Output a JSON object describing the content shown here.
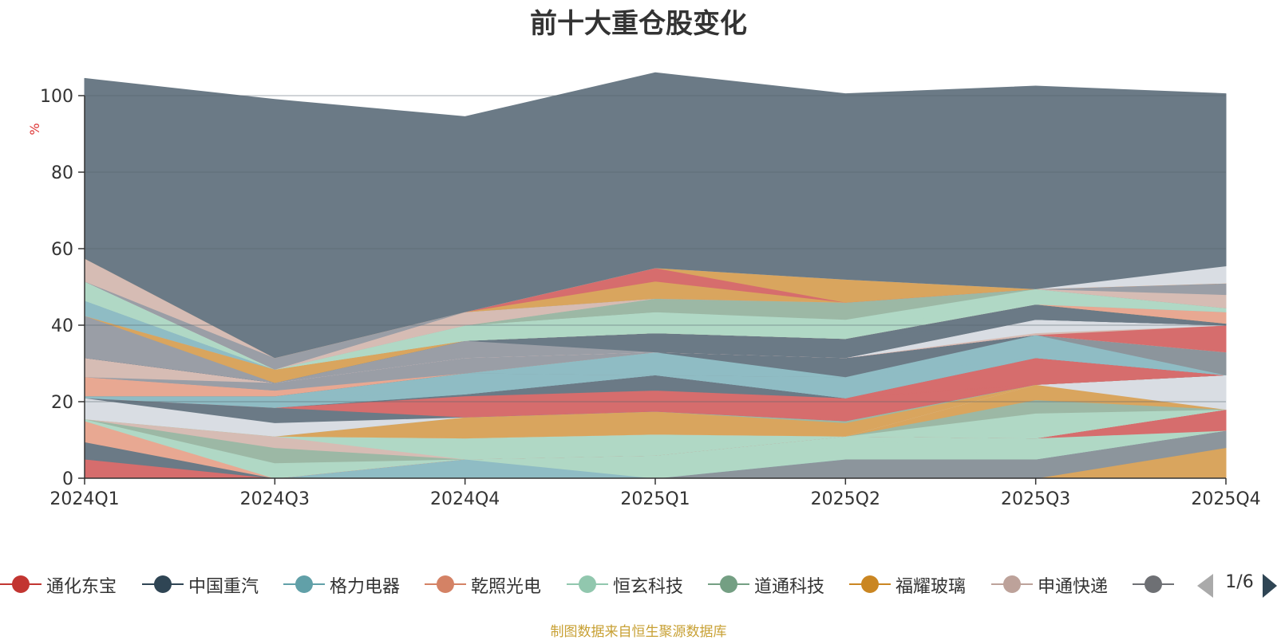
{
  "chart_data": {
    "type": "area",
    "stacked": true,
    "title": "前十大重仓股变化",
    "ylabel": "%",
    "ylim": [
      0,
      100
    ],
    "y_ticks": [
      0,
      20,
      40,
      60,
      80,
      100
    ],
    "categories": [
      "2024Q1",
      "2024Q3",
      "2024Q4",
      "2025Q1",
      "2025Q2",
      "2025Q3",
      "2025Q4"
    ],
    "grid": true,
    "legend_position": "bottom",
    "series": [
      {
        "values": [
          0,
          0,
          0,
          0,
          0,
          0,
          8.0
        ],
        "color": "#d9a55e"
      },
      {
        "values": [
          0,
          0,
          0,
          0,
          5.0,
          5.0,
          4.5
        ],
        "color": "#8c959c"
      },
      {
        "values": [
          0,
          0,
          5.0,
          0,
          0,
          0,
          0
        ],
        "color": "#8fbcc4"
      },
      {
        "values": [
          0,
          0,
          0,
          6.0,
          6.0,
          0,
          0
        ],
        "color": "#b0d8c5"
      },
      {
        "values": [
          0,
          0,
          0,
          0,
          0,
          5.5,
          0
        ],
        "color": "#b0d8c5"
      },
      {
        "values": [
          0,
          0,
          0,
          0,
          0,
          0,
          5.5
        ],
        "color": "#d66d6d"
      },
      {
        "values": [
          5.0,
          0,
          0,
          0,
          0,
          0,
          0
        ],
        "color": "#d66d6d"
      },
      {
        "values": [
          4.5,
          0,
          0,
          0,
          0,
          0,
          0
        ],
        "color": "#6b7a86"
      },
      {
        "values": [
          5.5,
          0,
          0,
          0,
          0,
          0,
          0
        ],
        "color": "#e8a892"
      },
      {
        "values": [
          0.5,
          4.0,
          0,
          0,
          0,
          0,
          0
        ],
        "color": "#b0d8c5"
      },
      {
        "values": [
          0,
          4.0,
          0,
          0,
          0,
          0,
          0
        ],
        "color": "#9cb8a5"
      },
      {
        "values": [
          0,
          3.0,
          0,
          0,
          0,
          0,
          0
        ],
        "color": "#d6bcb4"
      },
      {
        "values": [
          0,
          0,
          5.5,
          5.5,
          0,
          6.5,
          0
        ],
        "color": "#b0d8c5"
      },
      {
        "values": [
          0,
          0,
          0,
          0,
          0,
          3.5,
          0
        ],
        "color": "#9cb8a5"
      },
      {
        "values": [
          0,
          0,
          0,
          0,
          0,
          4.0,
          0
        ],
        "color": "#d9a55e"
      },
      {
        "values": [
          0,
          0,
          0,
          0,
          0,
          0,
          9.0
        ],
        "color": "#d9dde3"
      },
      {
        "values": [
          0,
          0,
          5.5,
          6.0,
          3.5,
          0,
          0
        ],
        "color": "#d9a55e"
      },
      {
        "values": [
          0,
          0,
          0,
          0,
          0.5,
          0,
          0
        ],
        "color": "#9cb8a5"
      },
      {
        "values": [
          5.5,
          3.5,
          0,
          0,
          0,
          0,
          0
        ],
        "color": "#d9dde3"
      },
      {
        "values": [
          0,
          4.0,
          0,
          0,
          0,
          0,
          0
        ],
        "color": "#6b7a86"
      },
      {
        "values": [
          0,
          0,
          5.5,
          5.5,
          6.0,
          0,
          0
        ],
        "color": "#d66d6d"
      },
      {
        "values": [
          0,
          0,
          0,
          0,
          0,
          7.0,
          0
        ],
        "color": "#d66d6d"
      },
      {
        "values": [
          0,
          0,
          0.5,
          4.0,
          0,
          0,
          0
        ],
        "color": "#6b7a86"
      },
      {
        "values": [
          0.5,
          0,
          0,
          0,
          0,
          0,
          0
        ],
        "color": "#8fbcc4"
      },
      {
        "values": [
          0,
          3.0,
          0,
          0,
          0,
          0,
          0
        ],
        "color": "#8fbcc4"
      },
      {
        "values": [
          0,
          0,
          5.5,
          0,
          5.5,
          0,
          0
        ],
        "color": "#8fbcc4"
      },
      {
        "values": [
          0,
          0,
          0,
          0,
          0,
          6.0,
          0
        ],
        "color": "#8fbcc4"
      },
      {
        "values": [
          0,
          0,
          0,
          0,
          0,
          0,
          6.0
        ],
        "color": "#8c959c"
      },
      {
        "values": [
          0,
          0,
          0,
          6.0,
          0,
          0,
          0
        ],
        "color": "#8fbcc4"
      },
      {
        "values": [
          0,
          0,
          0,
          0,
          5.0,
          0,
          0
        ],
        "color": "#6b7a86"
      },
      {
        "values": [
          5.0,
          1.5,
          0,
          0,
          0,
          0,
          0
        ],
        "color": "#e8a892"
      },
      {
        "values": [
          0,
          0,
          4.0,
          0,
          0,
          0,
          0
        ],
        "color": "#9a9ea6"
      },
      {
        "values": [
          0,
          2.0,
          0,
          0,
          0,
          0,
          0
        ],
        "color": "#9a9ea6"
      },
      {
        "values": [
          5.0,
          0,
          0,
          0,
          0,
          0,
          0
        ],
        "color": "#d6bcb4"
      },
      {
        "values": [
          0,
          0,
          0,
          0,
          0,
          0,
          7.0
        ],
        "color": "#d66d6d"
      },
      {
        "values": [
          0,
          0,
          0,
          0,
          0,
          0.5,
          0
        ],
        "color": "#d6bcb4"
      },
      {
        "values": [
          0,
          0,
          0,
          0,
          0,
          3.5,
          0
        ],
        "color": "#d9dde3"
      },
      {
        "values": [
          0,
          0,
          4.5,
          0,
          0,
          0,
          0
        ],
        "color": "#9a9ea6"
      },
      {
        "values": [
          0,
          0,
          0,
          5.0,
          5.0,
          0,
          0
        ],
        "color": "#6b7a86"
      },
      {
        "values": [
          0,
          0,
          0,
          0,
          0,
          4.0,
          0
        ],
        "color": "#6b7a86"
      },
      {
        "values": [
          0,
          0,
          0,
          0,
          0,
          0,
          0.5
        ],
        "color": "#6b7a86"
      },
      {
        "values": [
          11.0,
          0,
          0,
          0,
          0,
          0,
          0
        ],
        "color": "#9a9ea6"
      },
      {
        "values": [
          0,
          3.5,
          0,
          0,
          0,
          0,
          0
        ],
        "color": "#d9a55e"
      },
      {
        "values": [
          0,
          0,
          0,
          0,
          0,
          0,
          3.0
        ],
        "color": "#e8a892"
      },
      {
        "values": [
          4.0,
          0,
          0,
          0,
          0,
          0,
          0
        ],
        "color": "#8fbcc4"
      },
      {
        "values": [
          0,
          0,
          0,
          0,
          0,
          4.0,
          0
        ],
        "color": "#b0d8c5"
      },
      {
        "values": [
          0,
          0,
          4.0,
          5.5,
          5.0,
          0,
          0
        ],
        "color": "#b0d8c5"
      },
      {
        "values": [
          0,
          0,
          0,
          0,
          0,
          0,
          1.0
        ],
        "color": "#b0d8c5"
      },
      {
        "values": [
          5.0,
          0,
          0,
          0,
          0,
          0,
          0
        ],
        "color": "#b0d8c5"
      },
      {
        "values": [
          0,
          0,
          0,
          0,
          4.5,
          0,
          0
        ],
        "color": "#9cb8a5"
      },
      {
        "values": [
          0,
          0,
          0,
          3.5,
          0,
          0,
          0
        ],
        "color": "#9cb8a5"
      },
      {
        "values": [
          0,
          0,
          0,
          0,
          0,
          0,
          3.5
        ],
        "color": "#d6bcb4"
      },
      {
        "values": [
          0,
          0,
          3.5,
          0,
          0,
          0,
          0
        ],
        "color": "#d6bcb4"
      },
      {
        "values": [
          0,
          0,
          0,
          0,
          0,
          0,
          3.0
        ],
        "color": "#9a9ea6"
      },
      {
        "values": [
          0,
          3.0,
          0,
          0,
          0,
          0,
          0
        ],
        "color": "#9a9ea6"
      },
      {
        "values": [
          6.0,
          0,
          0,
          0,
          0,
          0,
          0
        ],
        "color": "#d6bcb4"
      },
      {
        "values": [
          0,
          0,
          0,
          4.5,
          0,
          0,
          0
        ],
        "color": "#d9a55e"
      },
      {
        "values": [
          0,
          0,
          0,
          3.5,
          0,
          0,
          0
        ],
        "color": "#d66d6d"
      },
      {
        "values": [
          0,
          0,
          0,
          0,
          6.0,
          0,
          0
        ],
        "color": "#d9a55e"
      },
      {
        "values": [
          0,
          0,
          0,
          0,
          0,
          0,
          4.5
        ],
        "color": "#d9dde3"
      },
      {
        "values": [
          47.0,
          67.5,
          51.0,
          51.0,
          48.5,
          53.0,
          45.0
        ],
        "color": "#6b7a86"
      }
    ],
    "legend": [
      {
        "label": "通化东宝",
        "color": "#c23531"
      },
      {
        "label": "中国重汽",
        "color": "#2f4554"
      },
      {
        "label": "格力电器",
        "color": "#61a0a8"
      },
      {
        "label": "乾照光电",
        "color": "#d48265"
      },
      {
        "label": "恒玄科技",
        "color": "#91c7ae"
      },
      {
        "label": "道通科技",
        "color": "#749f83"
      },
      {
        "label": "福耀玻璃",
        "color": "#ca8622"
      },
      {
        "label": "申通快递",
        "color": "#bda29a"
      },
      {
        "label": "",
        "color": "#6e7074"
      }
    ],
    "legend_page": "1/6",
    "source_note": "制图数据来自恒生聚源数据库"
  }
}
